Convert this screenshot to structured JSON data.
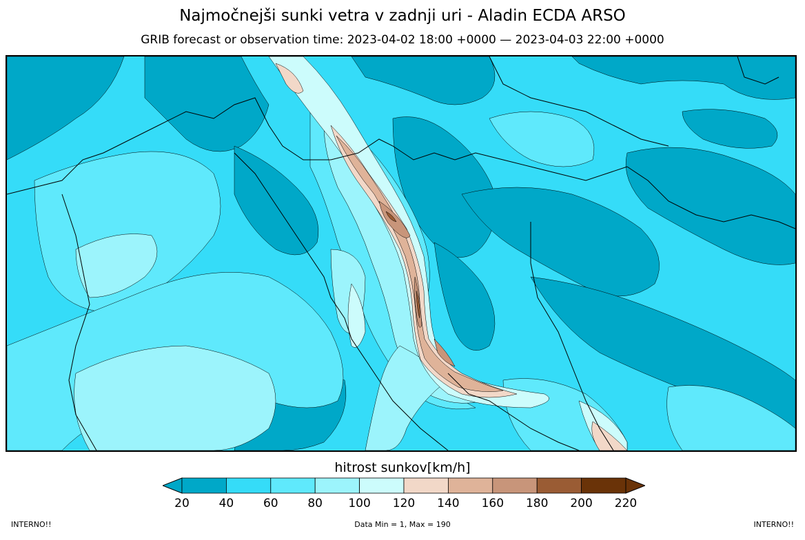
{
  "header": {
    "title": "Najmočnejši sunki vetra v zadnji uri - Aladin ECDA ARSO",
    "subtitle": "GRIB forecast or observation time: 2023-04-02 18:00 +0000 — 2023-04-03 22:00 +0000"
  },
  "legend": {
    "title": "hitrost sunkov[km/h]",
    "ticks": [
      "20",
      "40",
      "60",
      "80",
      "100",
      "120",
      "140",
      "160",
      "180",
      "200",
      "220"
    ],
    "colors": [
      "#00a8c8",
      "#35dcf8",
      "#5fe9fc",
      "#9cf4fc",
      "#ccfcfc",
      "#f2d8c8",
      "#dfb399",
      "#c8957a",
      "#9a5c34",
      "#6a3308"
    ],
    "under_color": "#00a8c8",
    "over_color": "#6a3308"
  },
  "map": {
    "background_color": "#35dcf8"
  },
  "footer": {
    "left": "INTERNO!!",
    "center": "Data Min = 1, Max = 190",
    "right": "INTERNO!!"
  }
}
